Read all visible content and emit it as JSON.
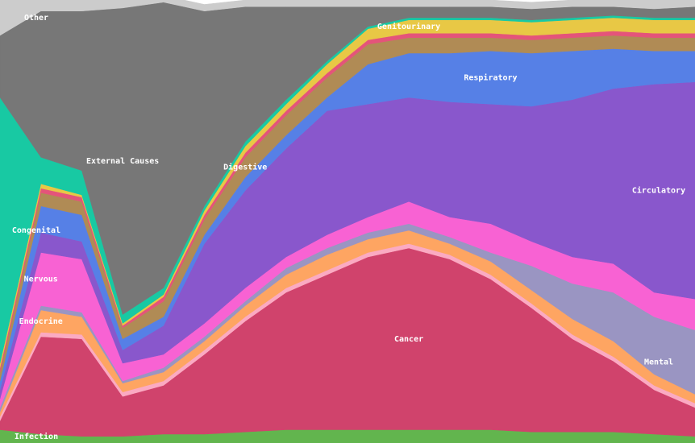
{
  "chart_data": {
    "type": "stacked-area",
    "categories": [
      null,
      null,
      null,
      null,
      null,
      null,
      null,
      null,
      null,
      null,
      null,
      null,
      null,
      null,
      null,
      null,
      null,
      null
    ],
    "ylim": [
      0,
      100
    ],
    "series": [
      {
        "name": "Infection",
        "color": "#62b54e",
        "values": [
          3,
          2,
          1.5,
          1.5,
          2,
          2,
          2.5,
          3,
          3,
          3,
          3,
          3,
          3,
          2.5,
          2.5,
          2.5,
          2,
          1.5
        ]
      },
      {
        "name": "Cancer",
        "color": "#d0436c",
        "values": [
          2,
          22,
          22,
          9,
          11,
          18,
          25,
          31,
          35,
          39,
          41,
          38.5,
          34,
          28,
          21,
          16,
          10,
          6.5
        ]
      },
      {
        "color": "#fbaac2",
        "values": [
          1,
          1,
          1,
          1,
          1,
          1,
          1,
          1,
          1,
          1,
          1,
          1,
          1,
          1,
          1,
          1,
          1,
          1
        ]
      },
      {
        "name": "Endocrine",
        "color": "#fea562",
        "values": [
          1,
          5,
          4,
          2,
          2,
          2,
          2.5,
          3,
          3.5,
          3,
          3,
          2.5,
          3,
          3,
          3.5,
          3.5,
          2.5,
          2
        ]
      },
      {
        "name": "Mental",
        "color": "#9a95c2",
        "values": [
          1,
          1,
          1,
          0.5,
          1,
          1,
          1,
          1.5,
          1.5,
          1.5,
          1.5,
          1.5,
          2,
          5.5,
          8,
          11,
          13,
          14.5
        ]
      },
      {
        "name": "Nervous",
        "color": "#f862d3",
        "values": [
          2,
          12,
          12,
          4,
          3,
          3,
          3,
          2.5,
          3,
          3.5,
          5,
          4.5,
          6.5,
          5.5,
          6,
          6.5,
          5.5,
          7
        ]
      },
      {
        "name": "Circulatory",
        "color": "#8957cc",
        "values": [
          2,
          4.5,
          4,
          3,
          6.5,
          18,
          22,
          24.5,
          28,
          25.5,
          23.5,
          26,
          27,
          30.5,
          35.5,
          39.5,
          47,
          49
        ]
      },
      {
        "name": "Respiratory",
        "color": "#5680e6",
        "values": [
          2,
          6,
          6,
          2.5,
          2,
          2,
          3,
          3,
          3,
          9,
          10,
          11,
          12,
          12,
          11,
          9,
          7.5,
          7
        ]
      },
      {
        "name": "Digestive",
        "color": "#b08b55",
        "values": [
          2,
          3,
          3,
          2.5,
          3.5,
          3.5,
          4.5,
          4.5,
          4.5,
          4.5,
          3.5,
          3.5,
          3,
          3,
          3,
          3,
          3,
          3
        ]
      },
      {
        "color": "#e4547a",
        "values": [
          1,
          1,
          1,
          0.5,
          1,
          1,
          1,
          1,
          1,
          1,
          1,
          1,
          1,
          1,
          1,
          1,
          1,
          1
        ]
      },
      {
        "name": "Genitourinary",
        "color": "#e8c845",
        "values": [
          1,
          1,
          0.5,
          0.5,
          0.5,
          1,
          1.5,
          1.5,
          2,
          2.5,
          3,
          3,
          3,
          3,
          3,
          3,
          3,
          3
        ]
      },
      {
        "name": "Congenital",
        "color": "#18c9a3",
        "values": [
          60,
          6,
          5.5,
          2,
          1.5,
          1,
          1,
          1,
          0.7,
          0.5,
          0.5,
          0.5,
          0.5,
          0.5,
          0.5,
          0.5,
          0.5,
          0.5
        ]
      },
      {
        "name": "External Causes",
        "color": "#777777",
        "values": [
          14,
          33,
          36,
          69.2,
          64.5,
          44,
          30.5,
          21,
          12.3,
          4.5,
          2.5,
          2.5,
          2.5,
          2.5,
          2.5,
          2,
          2,
          2.5
        ]
      },
      {
        "name": "Other",
        "color": "#cccccc",
        "values": [
          8,
          2.5,
          2.5,
          1.8,
          1.5,
          1.5,
          1.5,
          1.5,
          1.5,
          1.5,
          1.5,
          1.5,
          1.5,
          1.5,
          1.5,
          1.5,
          2,
          1.5
        ]
      }
    ]
  }
}
